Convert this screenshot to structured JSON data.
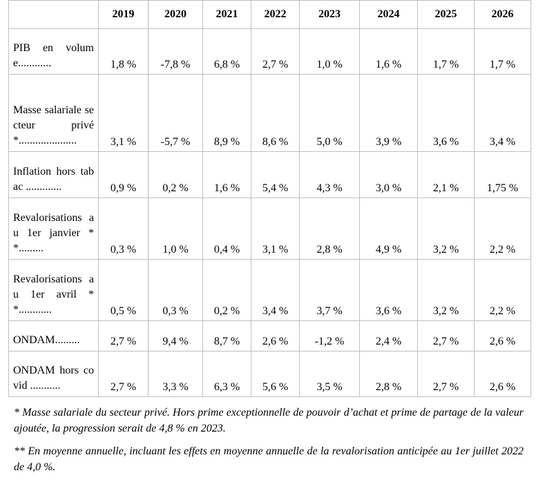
{
  "table": {
    "columns": [
      "2019",
      "2020",
      "2021",
      "2022",
      "2023",
      "2024",
      "2025",
      "2026"
    ],
    "rows": [
      {
        "label": "PIB en volume............",
        "values": [
          "1,8 %",
          "-7,8 %",
          "6,8 %",
          "2,7 %",
          "1,0 %",
          "1,6 %",
          "1,7 %",
          "1,7 %"
        ]
      },
      {
        "label": "Masse salariale secteur privé *.....................",
        "values": [
          "3,1 %",
          "-5,7 %",
          "8,9 %",
          "8,6 %",
          "5,0 %",
          "3,9 %",
          "3,6 %",
          "3,4 %"
        ]
      },
      {
        "label": "Inflation hors tabac .............",
        "values": [
          "0,9 %",
          "0,2 %",
          "1,6 %",
          "5,4 %",
          "4,3 %",
          "3,0 %",
          "2,1 %",
          "1,75 %"
        ]
      },
      {
        "label": "Revalorisations au 1er janvier **.........",
        "values": [
          "0,3 %",
          "1,0 %",
          "0,4 %",
          "3,1 %",
          "2,8 %",
          "4,9 %",
          "3,2 %",
          "2,2 %"
        ]
      },
      {
        "label": "Revalorisations au 1er avril **............",
        "values": [
          "0,5 %",
          "0,3 %",
          "0,2 %",
          "3,4 %",
          "3,7 %",
          "3,6 %",
          "3,2 %",
          "2,2 %"
        ]
      },
      {
        "label": "ONDAM.........",
        "values": [
          "2,7 %",
          "9,4 %",
          "8,7 %",
          "2,6 %",
          "-1,2 %",
          "2,4 %",
          "2,7 %",
          "2,6 %"
        ]
      },
      {
        "label": "ONDAM hors covid ...........",
        "values": [
          "2,7 %",
          "3,3 %",
          "6,3 %",
          "5,6 %",
          "3,5 %",
          "2,8 %",
          "2,7 %",
          "2,6 %"
        ]
      }
    ],
    "notes": [
      "* Masse salariale du secteur privé. Hors prime exceptionnelle de pouvoir d’achat et prime de partage de la valeur ajoutée, la progression serait de 4,8 % en 2023.",
      "** En moyenne annuelle, incluant les effets en moyenne annuelle de la revalorisation anticipée au 1er juillet 2022 de 4,0 %."
    ]
  }
}
